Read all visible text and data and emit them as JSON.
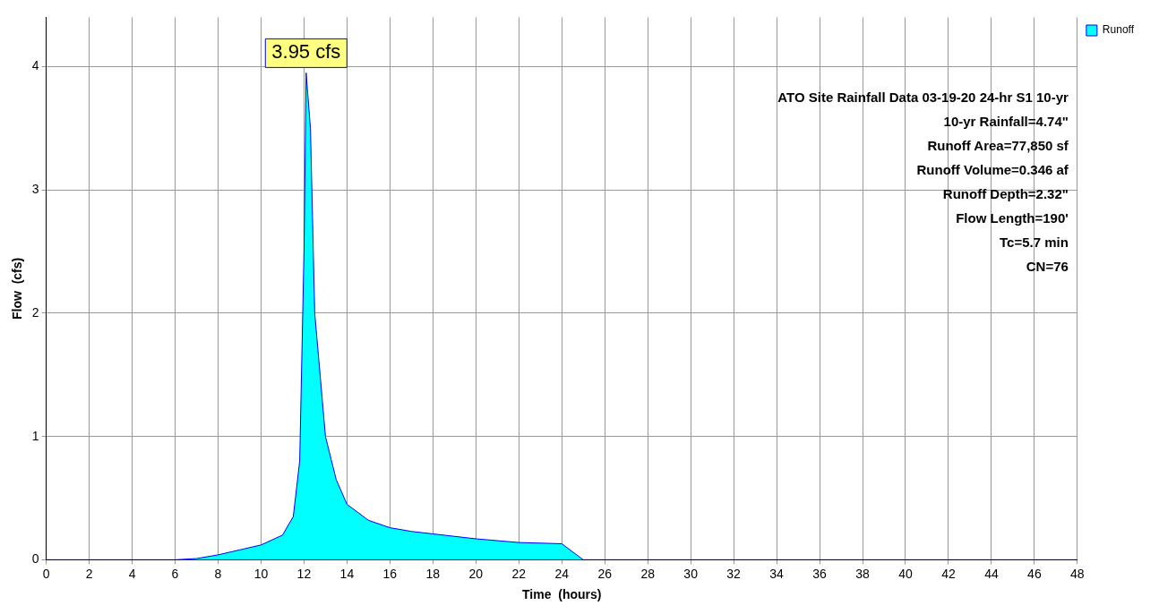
{
  "chart_data": {
    "type": "area",
    "xlabel": "Time  (hours)",
    "ylabel": "Flow  (cfs)",
    "xlim": [
      0,
      48
    ],
    "xticks": [
      0,
      2,
      4,
      6,
      8,
      10,
      12,
      14,
      16,
      18,
      20,
      22,
      24,
      26,
      28,
      30,
      32,
      34,
      36,
      38,
      40,
      42,
      44,
      46,
      48
    ],
    "ylim": [
      0,
      4.4
    ],
    "yticks": [
      0,
      1,
      2,
      3,
      4
    ],
    "grid": true,
    "legend": "top right",
    "line_style": "solid",
    "series": [
      {
        "name": "Runoff",
        "color": "#00ffff",
        "x": [
          0,
          6,
          7,
          8,
          9,
          10,
          11,
          11.5,
          11.8,
          12,
          12.1,
          12.3,
          12.5,
          13,
          13.5,
          14,
          15,
          16,
          17,
          18,
          20,
          22,
          24,
          25,
          26,
          30,
          36,
          42,
          48
        ],
        "values": [
          0,
          0,
          0.01,
          0.04,
          0.08,
          0.12,
          0.2,
          0.35,
          0.8,
          2.5,
          3.95,
          3.5,
          2.0,
          1.0,
          0.65,
          0.45,
          0.32,
          0.26,
          0.23,
          0.21,
          0.17,
          0.14,
          0.13,
          0,
          0,
          0,
          0,
          0,
          0
        ]
      }
    ],
    "annotations": [
      {
        "text": "3.95 cfs",
        "x": 12.1,
        "y": 3.95
      },
      "ATO Site Rainfall Data 03-19-20 24-hr S1 10-yr",
      "10-yr Rainfall=4.74\"",
      "Runoff Area=77,850 sf",
      "Runoff Volume=0.346 af",
      "Runoff Depth=2.32\"",
      "Flow Length=190'",
      "Tc=5.7 min",
      "CN=76"
    ]
  }
}
